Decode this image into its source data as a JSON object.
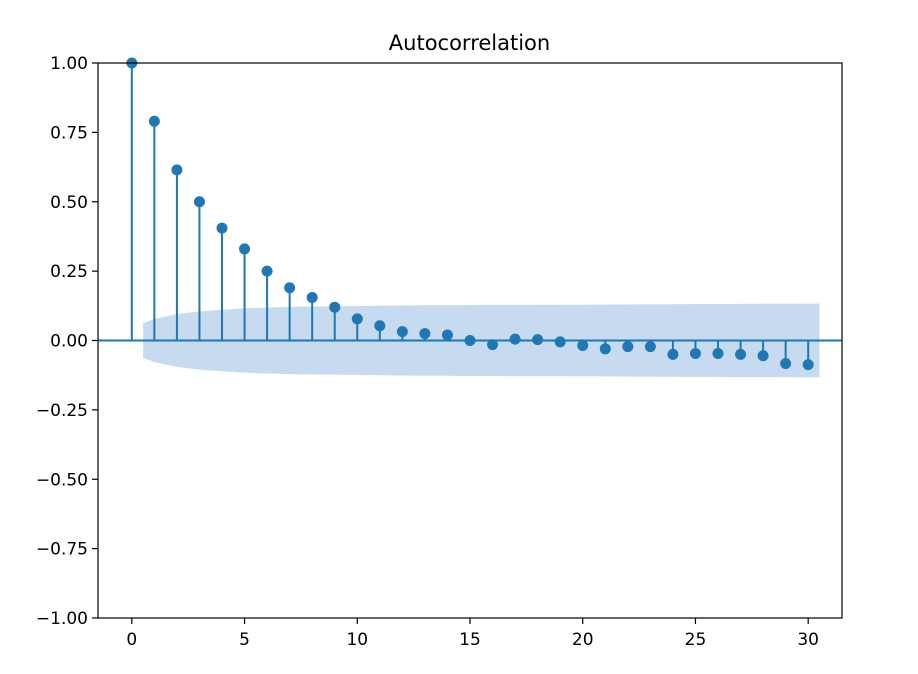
{
  "chart_data": {
    "type": "stem",
    "title": "Autocorrelation",
    "xlabel": "",
    "ylabel": "",
    "xlim": [
      -1.5,
      31.5
    ],
    "ylim": [
      -1.0,
      1.0
    ],
    "xticks": [
      0,
      5,
      10,
      15,
      20,
      25,
      30
    ],
    "xtick_labels": [
      "0",
      "5",
      "10",
      "15",
      "20",
      "25",
      "30"
    ],
    "yticks": [
      1.0,
      0.75,
      0.5,
      0.25,
      0.0,
      -0.25,
      -0.5,
      -0.75,
      -1.0
    ],
    "ytick_labels": [
      "1.00",
      "0.75",
      "0.50",
      "0.25",
      "0.00",
      "−0.25",
      "−0.50",
      "−0.75",
      "−1.00"
    ],
    "grid": false,
    "colors": {
      "stem": "#1f77b4",
      "confidence_band": "#c6dbef"
    },
    "lags": [
      0,
      1,
      2,
      3,
      4,
      5,
      6,
      7,
      8,
      9,
      10,
      11,
      12,
      13,
      14,
      15,
      16,
      17,
      18,
      19,
      20,
      21,
      22,
      23,
      24,
      25,
      26,
      27,
      28,
      29,
      30
    ],
    "values": [
      1.0,
      0.79,
      0.615,
      0.5,
      0.405,
      0.33,
      0.25,
      0.19,
      0.155,
      0.12,
      0.078,
      0.053,
      0.032,
      0.025,
      0.02,
      0.0,
      -0.015,
      0.005,
      0.003,
      -0.005,
      -0.018,
      -0.03,
      -0.022,
      -0.022,
      -0.05,
      -0.047,
      -0.047,
      -0.05,
      -0.055,
      -0.083,
      -0.087
    ],
    "confidence_band": {
      "x": [
        0.5,
        1,
        2,
        3,
        4,
        5,
        6,
        7,
        8,
        9,
        10,
        11,
        12,
        13,
        14,
        15,
        20,
        25,
        30,
        30.5
      ],
      "upper": [
        0.062,
        0.078,
        0.095,
        0.105,
        0.111,
        0.116,
        0.119,
        0.121,
        0.122,
        0.123,
        0.124,
        0.125,
        0.126,
        0.127,
        0.127,
        0.128,
        0.129,
        0.131,
        0.133,
        0.133
      ]
    }
  }
}
